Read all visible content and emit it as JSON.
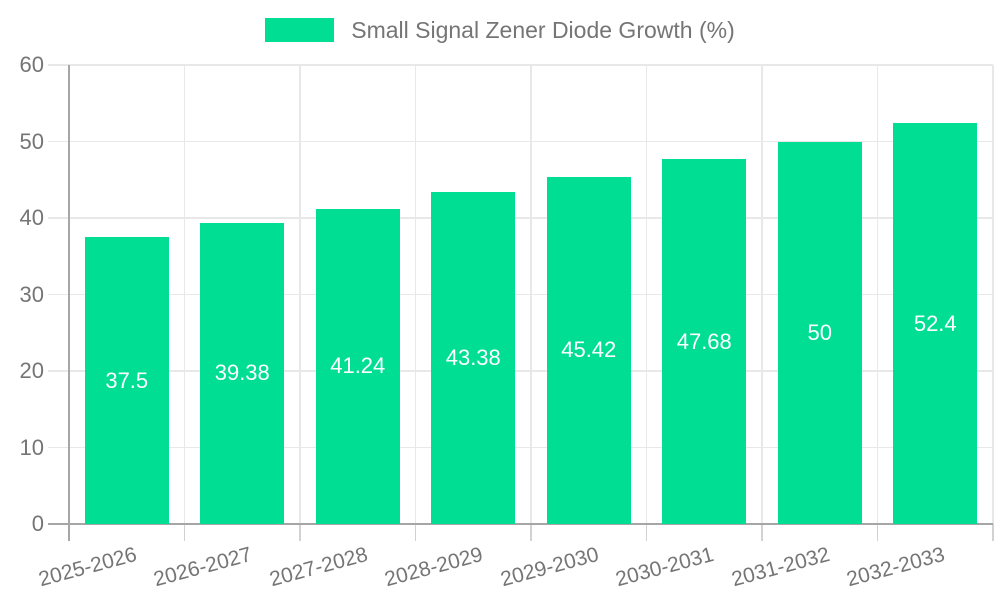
{
  "chart_data": {
    "type": "bar",
    "title": "Small Signal Zener Diode Growth (%)",
    "categories": [
      "2025-2026",
      "2026-2027",
      "2027-2028",
      "2028-2029",
      "2029-2030",
      "2030-2031",
      "2031-2032",
      "2032-2033"
    ],
    "values": [
      37.5,
      39.38,
      41.24,
      43.38,
      45.42,
      47.68,
      50,
      52.4
    ],
    "value_labels": [
      "37.5",
      "39.38",
      "41.24",
      "43.38",
      "45.42",
      "47.68",
      "50",
      "52.4"
    ],
    "xlabel": "",
    "ylabel": "",
    "ylim": [
      0,
      60
    ],
    "ytick_step": 10,
    "ytick_labels": [
      "0",
      "10",
      "20",
      "30",
      "40",
      "50",
      "60"
    ],
    "grid": "horizontal and vertical category boundaries",
    "legend_position": "top-center",
    "series_color": "#00DE93",
    "colors": {
      "bar": "#00DE93",
      "grid": "#E8E8E8",
      "axis": "#A6A6A6",
      "category_tick": "#D2D2D2",
      "label_text": "#757575",
      "value_text": "#FFFFFF",
      "background": "#FFFFFF"
    }
  }
}
